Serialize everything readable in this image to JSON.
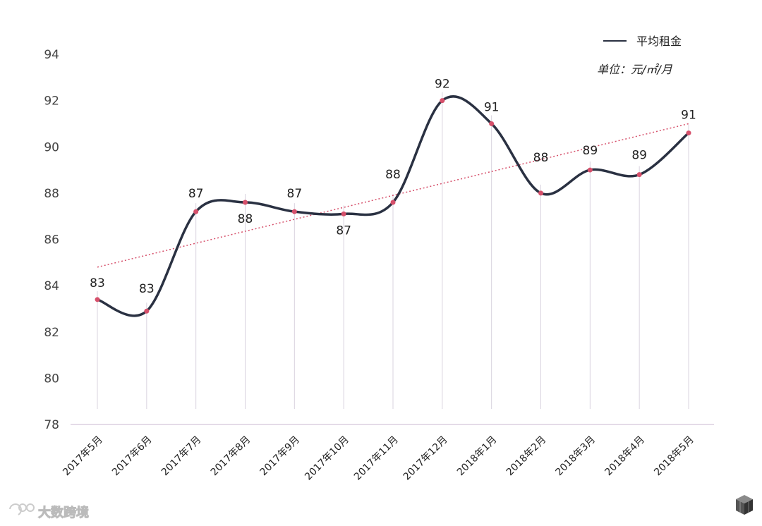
{
  "chart_data": {
    "type": "line",
    "categories": [
      "2017年5月",
      "2017年6月",
      "2017年7月",
      "2017年8月",
      "2017年9月",
      "2017年10月",
      "2017年11月",
      "2017年12月",
      "2018年1月",
      "2018年2月",
      "2018年3月",
      "2018年4月",
      "2018年5月"
    ],
    "series": [
      {
        "name": "平均租金",
        "values": [
          83.4,
          82.9,
          87.2,
          87.6,
          87.2,
          87.1,
          87.6,
          92.0,
          91.0,
          88.0,
          89.0,
          88.8,
          90.6
        ],
        "data_labels": [
          "83",
          "83",
          "87",
          "88",
          "87",
          "87",
          "88",
          "92",
          "91",
          "88",
          "89",
          "89",
          "91"
        ],
        "color": "#2a3142",
        "marker_color": "#d6506b"
      }
    ],
    "trendline": {
      "type": "linear",
      "style": "dotted",
      "color": "#d6506b",
      "start": 84.8,
      "end": 91.0
    },
    "unit": "单位：元/㎡/月",
    "ylim": [
      78,
      94
    ],
    "yticks": [
      "78",
      "80",
      "82",
      "84",
      "86",
      "88",
      "90",
      "92",
      "94"
    ],
    "grid": false,
    "legend_position": "top-right"
  },
  "watermark": {
    "text": "大数跨境",
    "logo_text": "SOO"
  }
}
